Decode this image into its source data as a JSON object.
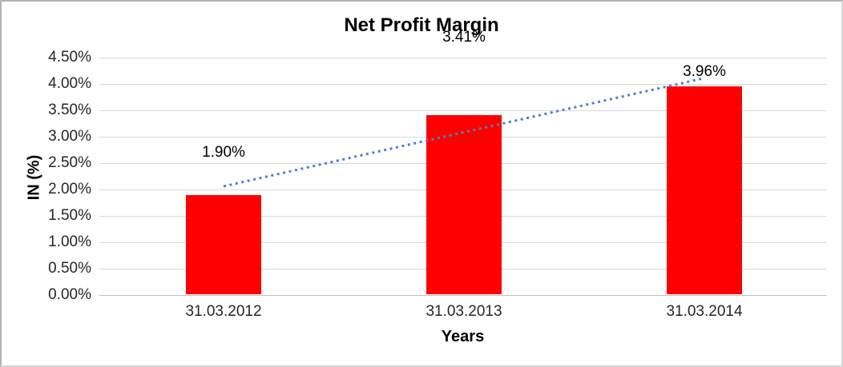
{
  "window": {
    "background": "#ffffff",
    "border_color": "#bdbdbd"
  },
  "chart_data": {
    "type": "bar",
    "title": "Net Profit Margin",
    "xlabel": "Years",
    "ylabel": "IN (%)",
    "categories": [
      "31.03.2012",
      "31.03.2013",
      "31.03.2014"
    ],
    "values": [
      1.9,
      3.41,
      3.96
    ],
    "data_labels": [
      "1.90%",
      "3.41%",
      "3.96%"
    ],
    "yticks": [
      "0.00%",
      "0.50%",
      "1.00%",
      "1.50%",
      "2.00%",
      "2.50%",
      "3.00%",
      "3.50%",
      "4.00%",
      "4.50%"
    ],
    "ytick_values": [
      0,
      0.5,
      1.0,
      1.5,
      2.0,
      2.5,
      3.0,
      3.5,
      4.0,
      4.5
    ],
    "ylim": [
      0,
      4.5
    ],
    "grid": true,
    "legend": "none",
    "bar_color": "#ff0000",
    "gridline_color": "#d9d9d9",
    "axis_line_color": "#bfbfbf",
    "trendline": {
      "type": "linear",
      "style": "dotted",
      "color": "#4f81bd",
      "start_value": 2.06,
      "end_value": 4.11
    }
  }
}
